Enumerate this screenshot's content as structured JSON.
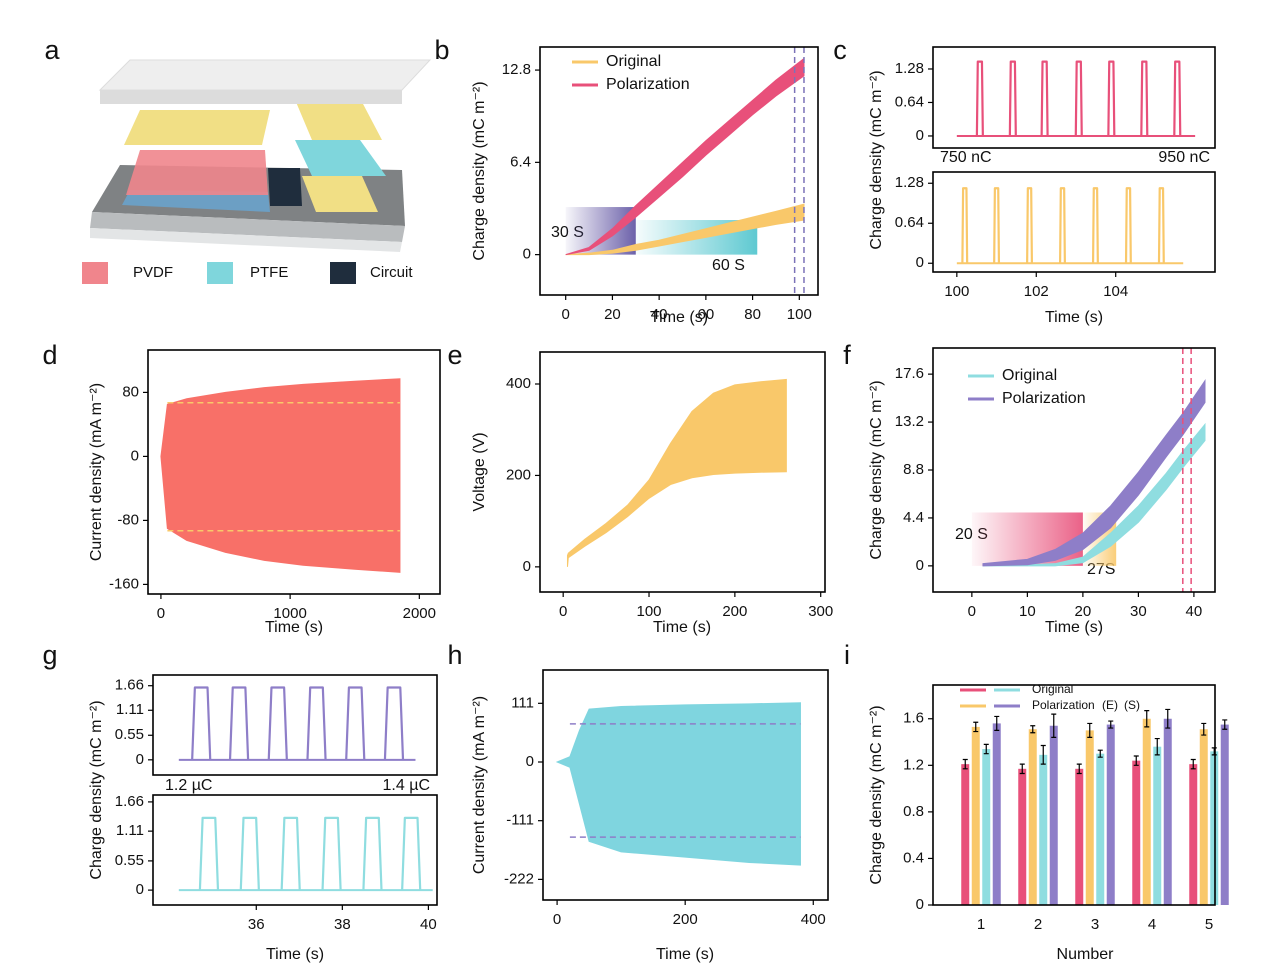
{
  "diagram": {
    "panel": "a",
    "legend": [
      "PVDF",
      "PTFE",
      "Circuit"
    ],
    "legend_colors": [
      "#f0858c",
      "#7fd6dc",
      "#1f2d3d"
    ]
  },
  "chart_data": [
    {
      "panel": "b",
      "type": "band",
      "xlabel": "Time (s)",
      "ylabel": "Charge density (mC m⁻²)",
      "xlim": [
        -11,
        108
      ],
      "ylim": [
        -2.8,
        14.4
      ],
      "xticks": [
        0,
        20,
        40,
        60,
        80,
        100
      ],
      "yticks": [
        0,
        6.4,
        12.8
      ],
      "x": [
        0,
        10,
        20,
        30,
        40,
        50,
        60,
        70,
        80,
        90,
        102
      ],
      "series": [
        {
          "name": "Original",
          "color": "#f9c86a",
          "values": [
            0,
            0.1,
            0.3,
            0.7,
            1.0,
            1.4,
            1.8,
            2.2,
            2.6,
            3.0,
            3.5
          ],
          "lower": [
            0,
            0,
            0.1,
            0.3,
            0.6,
            0.9,
            1.2,
            1.5,
            1.8,
            2.1,
            2.4
          ]
        },
        {
          "name": "Polarization",
          "color": "#e8507a",
          "values": [
            0,
            0.5,
            1.8,
            3.4,
            4.9,
            6.4,
            7.9,
            9.3,
            10.7,
            12.1,
            13.6
          ],
          "lower": [
            0,
            0.3,
            1.3,
            2.6,
            4.0,
            5.4,
            6.9,
            8.3,
            9.7,
            11.0,
            12.4
          ]
        }
      ],
      "regions": [
        {
          "x": [
            0,
            30
          ],
          "y": [
            0,
            3.3
          ],
          "color": "#5b4fa0"
        },
        {
          "x": [
            30,
            82
          ],
          "y": [
            0,
            2.4
          ],
          "color": "#4cc3cc"
        }
      ],
      "vlines": [
        98,
        102
      ],
      "vline_color": "#7b72b8",
      "annotations": [
        {
          "text": "30 S",
          "color": "#e8507a"
        },
        {
          "text": "60 S",
          "color": "#f9c86a"
        }
      ],
      "legend": "upper left"
    },
    {
      "panel": "c",
      "type": "pulses",
      "xlabel": "Time (s)",
      "ylabel": "Charge density (mC m⁻²)",
      "xlim": [
        99.4,
        106.5
      ],
      "xticks": [
        100,
        102,
        104
      ],
      "subplots": [
        {
          "color": "#e8507a",
          "ylim": [
            -0.23,
            1.7
          ],
          "yticks": [
            0,
            0.64,
            1.28
          ],
          "baseline": [
            100,
            106
          ],
          "pulse_width": 0.15,
          "x": [
            100.58,
            101.41,
            102.21,
            103.07,
            103.89,
            104.72,
            105.55
          ],
          "values": [
            1.42,
            1.42,
            1.42,
            1.42,
            1.42,
            1.42,
            1.42
          ]
        },
        {
          "color": "#f9c86a",
          "ylim": [
            -0.14,
            1.46
          ],
          "yticks": [
            0,
            0.64,
            1.28
          ],
          "baseline": [
            100,
            105.7
          ],
          "pulse_width": 0.12,
          "x": [
            100.2,
            101.0,
            101.83,
            102.66,
            103.49,
            104.32,
            105.15
          ],
          "values": [
            1.2,
            1.2,
            1.2,
            1.2,
            1.2,
            1.2,
            1.2
          ]
        }
      ],
      "annotations": [
        {
          "text": "750 nC",
          "color": "#f9c86a"
        },
        {
          "text": "950 nC",
          "color": "#e8507a"
        }
      ]
    },
    {
      "panel": "d",
      "type": "band",
      "xlabel": "Time (s)",
      "ylabel": "Current density (mA m⁻²)",
      "xlim": [
        -100,
        2160
      ],
      "ylim": [
        -172,
        133
      ],
      "xticks": [
        0,
        1000,
        2000
      ],
      "yticks": [
        -160,
        -80,
        0,
        80
      ],
      "x": [
        0,
        50,
        200,
        500,
        800,
        1100,
        1500,
        1850
      ],
      "series": [
        {
          "color": "#f87068",
          "values": [
            0,
            65,
            72,
            80,
            86,
            90,
            94,
            97
          ],
          "lower": [
            0,
            -90,
            -105,
            -120,
            -130,
            -136,
            -141,
            -145
          ]
        }
      ],
      "hlines": [
        67,
        -93
      ],
      "hline_color": "#f9c86a"
    },
    {
      "panel": "e",
      "type": "band",
      "xlabel": "Time (s)",
      "ylabel": "Voltage (V)",
      "xlim": [
        -27,
        305
      ],
      "ylim": [
        -55,
        470
      ],
      "xticks": [
        0,
        100,
        200,
        300
      ],
      "yticks": [
        0,
        200,
        400
      ],
      "x": [
        5,
        6,
        25,
        50,
        75,
        100,
        125,
        150,
        175,
        200,
        230,
        260
      ],
      "series": [
        {
          "color": "#f9c86a",
          "values": [
            25,
            30,
            60,
            95,
            135,
            190,
            270,
            340,
            380,
            398,
            405,
            410
          ],
          "lower": [
            0,
            20,
            45,
            75,
            110,
            150,
            180,
            195,
            202,
            205,
            207,
            208
          ]
        }
      ]
    },
    {
      "panel": "f",
      "type": "band",
      "xlabel": "Time (s)",
      "ylabel": "Charge density (mC m⁻²)",
      "xlim": [
        -7,
        43.8
      ],
      "ylim": [
        -2.4,
        20
      ],
      "xticks": [
        0,
        10,
        20,
        30,
        40
      ],
      "yticks": [
        0,
        4.4,
        8.8,
        13.2,
        17.6
      ],
      "x": [
        2,
        10,
        15,
        20,
        25,
        30,
        35,
        38,
        42
      ],
      "series": [
        {
          "name": "Original",
          "color": "#8fdde0",
          "values": [
            0,
            0.1,
            0.2,
            0.8,
            3.0,
            5.5,
            8.5,
            10.5,
            13
          ],
          "lower": [
            0,
            0,
            0,
            0.3,
            1.8,
            4.0,
            7.0,
            9.0,
            11.5
          ]
        },
        {
          "name": "Polarization",
          "color": "#8e7ec8",
          "values": [
            0.2,
            0.6,
            1.5,
            3.0,
            5.5,
            8.6,
            12,
            14,
            17
          ],
          "lower": [
            0,
            0.1,
            0.5,
            1.5,
            3.5,
            6.5,
            10,
            12,
            15
          ]
        }
      ],
      "regions": [
        {
          "x": [
            0,
            20
          ],
          "y": [
            0,
            4.9
          ],
          "color": "#e8507a"
        },
        {
          "x": [
            20,
            26
          ],
          "y": [
            0,
            4.9
          ],
          "color": "#f9c86a"
        }
      ],
      "vlines": [
        38,
        39.5
      ],
      "vline_color": "#e8507a",
      "annotations": [
        {
          "text": "20 S",
          "color": "#8e7ec8"
        },
        {
          "text": "27S",
          "color": "#8fdde0"
        }
      ],
      "legend": "upper left"
    },
    {
      "panel": "g",
      "type": "pulses",
      "xlabel": "Time (s)",
      "ylabel": "Charge density (mC m⁻²)",
      "xlim": [
        33.6,
        40.2
      ],
      "xticks": [
        36,
        38,
        40
      ],
      "subplots": [
        {
          "color": "#8e7ec8",
          "ylim": [
            -0.34,
            1.9
          ],
          "yticks": [
            0,
            0.55,
            1.11,
            1.66
          ],
          "baseline": [
            34.2,
            39.7
          ],
          "pulse_width": 0.42,
          "x": [
            34.72,
            35.6,
            36.5,
            37.4,
            38.3,
            39.2
          ],
          "values": [
            1.62,
            1.62,
            1.62,
            1.62,
            1.62,
            1.62
          ]
        },
        {
          "color": "#8fdde0",
          "ylim": [
            -0.28,
            1.79
          ],
          "yticks": [
            0,
            0.55,
            1.11,
            1.66
          ],
          "baseline": [
            34.2,
            40.1
          ],
          "pulse_width": 0.42,
          "x": [
            34.9,
            35.85,
            36.8,
            37.75,
            38.7,
            39.6
          ],
          "values": [
            1.36,
            1.36,
            1.36,
            1.36,
            1.36,
            1.36
          ]
        }
      ],
      "annotations": [
        {
          "text": "1.2 µC",
          "color": "#8fdde0"
        },
        {
          "text": "1.4 µC",
          "color": "#8e7ec8"
        }
      ]
    },
    {
      "panel": "h",
      "type": "band",
      "xlabel": "Time (s)",
      "ylabel": "Current density (mA m⁻²)",
      "xlim": [
        -22,
        423
      ],
      "ylim": [
        -261,
        174
      ],
      "xticks": [
        0,
        200,
        400
      ],
      "yticks": [
        -222,
        -111,
        0,
        111
      ],
      "x": [
        0,
        20,
        35,
        50,
        100,
        200,
        300,
        380
      ],
      "series": [
        {
          "color": "#7fd5df",
          "values": [
            0,
            10,
            60,
            100,
            105,
            108,
            110,
            112
          ],
          "lower": [
            0,
            -10,
            -80,
            -150,
            -170,
            -180,
            -190,
            -195
          ]
        }
      ],
      "hlines": [
        72,
        -142
      ],
      "hline_color": "#8e7ec8"
    },
    {
      "panel": "i",
      "type": "bar",
      "xlabel": "Number",
      "ylabel": "Charge density (mC m⁻²)",
      "categories": [
        "1",
        "2",
        "3",
        "4",
        "5"
      ],
      "ylim": [
        0,
        1.89
      ],
      "yticks": [
        0,
        0.4,
        0.8,
        1.2,
        1.6
      ],
      "series": [
        {
          "color": "#e8507a",
          "values": [
            1.21,
            1.17,
            1.17,
            1.24,
            1.21
          ],
          "errors": [
            0.04,
            0.04,
            0.04,
            0.04,
            0.04
          ]
        },
        {
          "color": "#f9c86a",
          "values": [
            1.53,
            1.51,
            1.5,
            1.6,
            1.51
          ],
          "errors": [
            0.04,
            0.03,
            0.06,
            0.07,
            0.05
          ]
        },
        {
          "color": "#8fdde0",
          "values": [
            1.34,
            1.29,
            1.3,
            1.36,
            1.32
          ],
          "errors": [
            0.04,
            0.08,
            0.03,
            0.07,
            0.03
          ]
        },
        {
          "color": "#8e7ec8",
          "values": [
            1.56,
            1.54,
            1.55,
            1.6,
            1.55
          ],
          "errors": [
            0.06,
            0.1,
            0.03,
            0.08,
            0.04
          ]
        }
      ],
      "legend": {
        "rows": [
          "Original",
          "Polarization"
        ],
        "columns": [
          "(E)",
          "(S)"
        ]
      }
    }
  ]
}
